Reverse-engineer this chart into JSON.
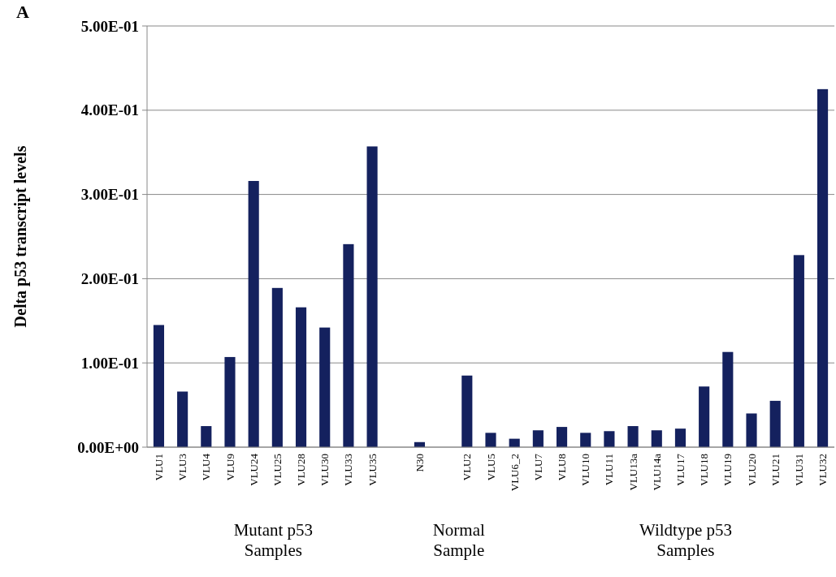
{
  "chart_data": {
    "type": "bar",
    "ylabel": "Delta p53 transcript levels",
    "categories": [
      "VLU1",
      "VLU3",
      "VLU4",
      "VLU9",
      "VLU24",
      "VLU25",
      "VLU28",
      "VLU30",
      "VLU33",
      "VLU35",
      null,
      "N30",
      null,
      "VLU2",
      "VLU5",
      "VLU6_2",
      "VLU7",
      "VLU8",
      "VLU10",
      "VLU11",
      "VLU13a",
      "VLU14a",
      "VLU17",
      "VLU18",
      "VLU19",
      "VLU20",
      "VLU21",
      "VLU31",
      "VLU32"
    ],
    "values": [
      0.145,
      0.066,
      0.025,
      0.107,
      0.316,
      0.189,
      0.166,
      0.142,
      0.241,
      0.357,
      null,
      0.006,
      null,
      0.085,
      0.017,
      0.01,
      0.02,
      0.024,
      0.017,
      0.019,
      0.025,
      0.02,
      0.022,
      0.072,
      0.113,
      0.04,
      0.055,
      0.228,
      0.425
    ],
    "color": "#14215e",
    "ylim": [
      0,
      0.5
    ],
    "yticks": [
      {
        "value": 0,
        "label": "0.00E+00"
      },
      {
        "value": 0.1,
        "label": "1.00E-01"
      },
      {
        "value": 0.2,
        "label": "2.00E-01"
      },
      {
        "value": 0.3,
        "label": "3.00E-01"
      },
      {
        "value": 0.4,
        "label": "4.00E-01"
      },
      {
        "value": 0.5,
        "label": "5.00E-01"
      }
    ],
    "grid": "y",
    "annotations": [
      "A",
      "Mutant p53\nSamples",
      "Normal\nSample",
      "Wildtype p53\nSamples"
    ]
  }
}
